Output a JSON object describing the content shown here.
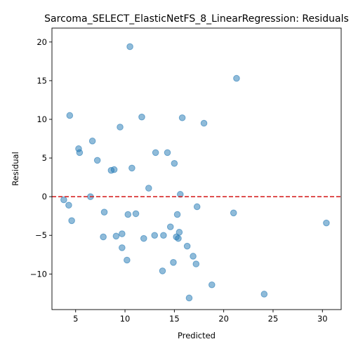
{
  "chart_data": {
    "type": "scatter",
    "title": "Sarcoma_SELECT_ElasticNetFS_8_LinearRegression: Residuals",
    "xlabel": "Predicted",
    "ylabel": "Residual",
    "xlim": [
      2.6,
      31.9
    ],
    "ylim": [
      -14.6,
      21.8
    ],
    "xticks": [
      5,
      10,
      15,
      20,
      25,
      30
    ],
    "yticks": [
      -10,
      -5,
      0,
      5,
      10,
      15,
      20
    ],
    "xtick_labels": [
      "5",
      "10",
      "15",
      "20",
      "25",
      "30"
    ],
    "ytick_labels": [
      "−10",
      "−5",
      "0",
      "5",
      "10",
      "15",
      "20"
    ],
    "reference_line": {
      "y": 0,
      "color": "#d62728",
      "style": "dashed"
    },
    "point_color": "#1f77b4",
    "points": [
      {
        "x": 10.5,
        "y": 19.4
      },
      {
        "x": 21.3,
        "y": 15.3
      },
      {
        "x": 4.4,
        "y": 10.5
      },
      {
        "x": 11.7,
        "y": 10.3
      },
      {
        "x": 15.8,
        "y": 10.2
      },
      {
        "x": 18.0,
        "y": 9.5
      },
      {
        "x": 9.5,
        "y": 9.0
      },
      {
        "x": 6.7,
        "y": 7.2
      },
      {
        "x": 5.3,
        "y": 6.2
      },
      {
        "x": 5.4,
        "y": 5.7
      },
      {
        "x": 13.1,
        "y": 5.7
      },
      {
        "x": 14.3,
        "y": 5.7
      },
      {
        "x": 7.2,
        "y": 4.7
      },
      {
        "x": 15.0,
        "y": 4.3
      },
      {
        "x": 10.7,
        "y": 3.7
      },
      {
        "x": 8.6,
        "y": 3.4
      },
      {
        "x": 8.9,
        "y": 3.5
      },
      {
        "x": 12.4,
        "y": 1.1
      },
      {
        "x": 15.6,
        "y": 0.3
      },
      {
        "x": 6.5,
        "y": 0.0
      },
      {
        "x": 3.8,
        "y": -0.4
      },
      {
        "x": 4.3,
        "y": -1.1
      },
      {
        "x": 17.3,
        "y": -1.3
      },
      {
        "x": 7.9,
        "y": -2.0
      },
      {
        "x": 21.0,
        "y": -2.1
      },
      {
        "x": 10.3,
        "y": -2.3
      },
      {
        "x": 11.1,
        "y": -2.2
      },
      {
        "x": 15.3,
        "y": -2.3
      },
      {
        "x": 4.6,
        "y": -3.1
      },
      {
        "x": 30.4,
        "y": -3.4
      },
      {
        "x": 14.6,
        "y": -3.9
      },
      {
        "x": 15.5,
        "y": -4.6
      },
      {
        "x": 9.7,
        "y": -4.8
      },
      {
        "x": 7.8,
        "y": -5.2
      },
      {
        "x": 9.1,
        "y": -5.1
      },
      {
        "x": 13.0,
        "y": -5.0
      },
      {
        "x": 13.9,
        "y": -5.0
      },
      {
        "x": 15.2,
        "y": -5.2
      },
      {
        "x": 15.4,
        "y": -5.4
      },
      {
        "x": 11.9,
        "y": -5.4
      },
      {
        "x": 9.7,
        "y": -6.6
      },
      {
        "x": 16.3,
        "y": -6.4
      },
      {
        "x": 16.9,
        "y": -7.7
      },
      {
        "x": 10.2,
        "y": -8.2
      },
      {
        "x": 14.9,
        "y": -8.5
      },
      {
        "x": 17.2,
        "y": -8.7
      },
      {
        "x": 13.8,
        "y": -9.6
      },
      {
        "x": 18.8,
        "y": -11.4
      },
      {
        "x": 24.1,
        "y": -12.6
      },
      {
        "x": 16.5,
        "y": -13.1
      }
    ]
  }
}
